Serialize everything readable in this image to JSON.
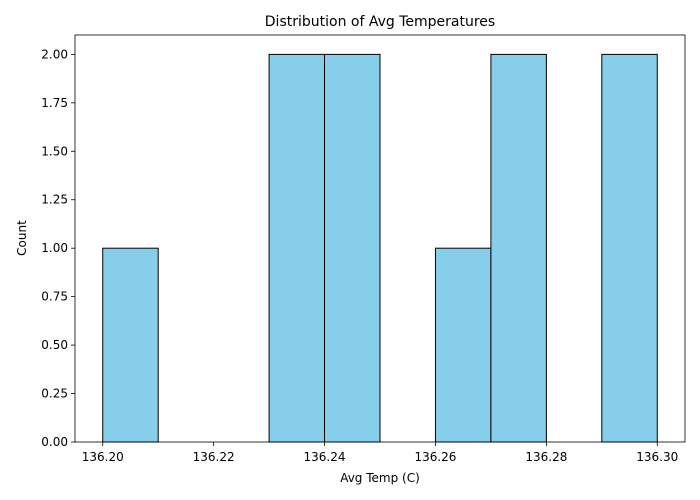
{
  "chart_data": {
    "type": "bar",
    "title": "Distribution of Avg Temperatures",
    "xlabel": "Avg Temp (C)",
    "ylabel": "Count",
    "bins": [
      {
        "start": 136.2,
        "end": 136.21,
        "count": 1
      },
      {
        "start": 136.21,
        "end": 136.22,
        "count": 0
      },
      {
        "start": 136.22,
        "end": 136.23,
        "count": 0
      },
      {
        "start": 136.23,
        "end": 136.24,
        "count": 2
      },
      {
        "start": 136.24,
        "end": 136.25,
        "count": 2
      },
      {
        "start": 136.25,
        "end": 136.26,
        "count": 0
      },
      {
        "start": 136.26,
        "end": 136.27,
        "count": 1
      },
      {
        "start": 136.27,
        "end": 136.28,
        "count": 2
      },
      {
        "start": 136.28,
        "end": 136.29,
        "count": 0
      },
      {
        "start": 136.29,
        "end": 136.3,
        "count": 2
      }
    ],
    "xlim": [
      136.195,
      136.305
    ],
    "ylim": [
      0,
      2.1
    ],
    "xticks": [
      "136.20",
      "136.22",
      "136.24",
      "136.26",
      "136.28",
      "136.30"
    ],
    "yticks": [
      "0.00",
      "0.25",
      "0.50",
      "0.75",
      "1.00",
      "1.25",
      "1.50",
      "1.75",
      "2.00"
    ],
    "grid": false,
    "legend": "none",
    "bar_color": "#87ceeb",
    "edge_color": "#000000"
  }
}
